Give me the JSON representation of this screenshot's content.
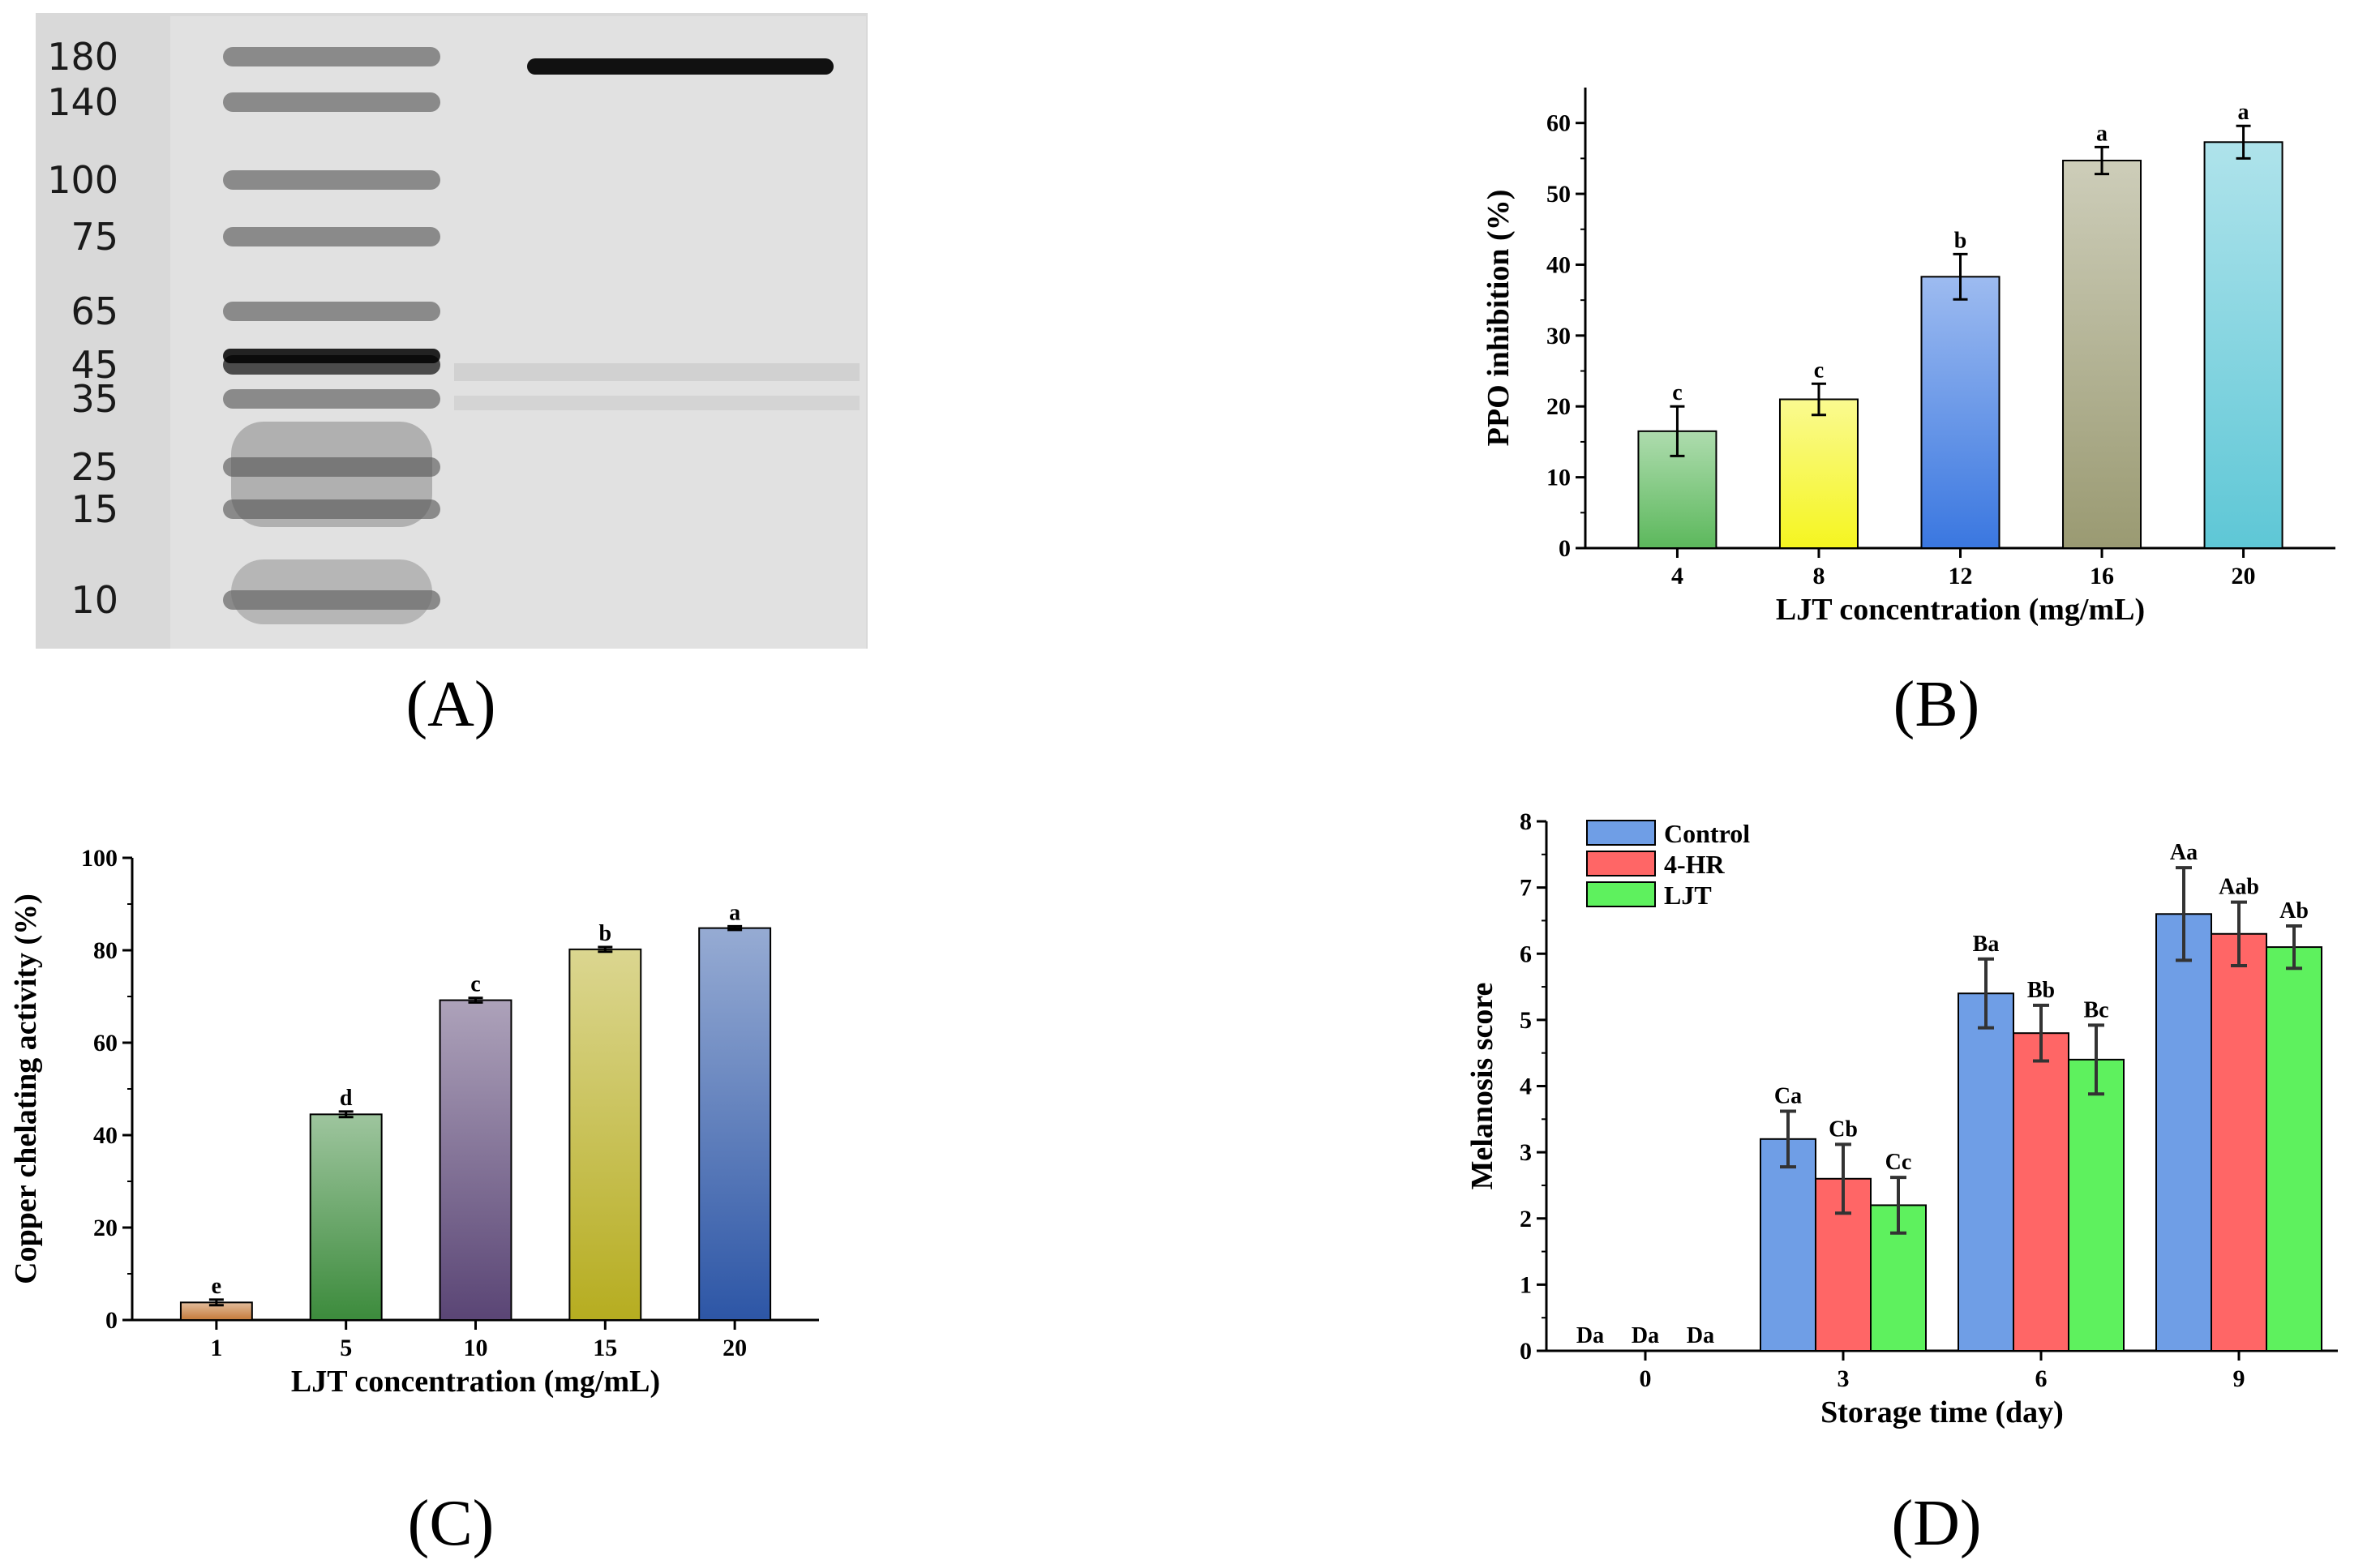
{
  "gel": {
    "markers": [
      "180",
      "140",
      "100",
      "75",
      "65",
      "45",
      "35",
      "25",
      "15",
      "10"
    ],
    "label": "(A)",
    "marker_values": [
      180,
      140,
      100,
      75,
      65,
      45,
      35,
      25,
      15,
      10
    ]
  },
  "panels": {
    "B": "(B)",
    "C": "(C)",
    "D": "(D)"
  },
  "colors": {
    "B": [
      "#5cb85c",
      "#f5f520",
      "#3a77e0",
      "#9a9a72",
      "#5ec7d6"
    ],
    "C": [
      "#c57a3a",
      "#3c8b3c",
      "#5a4575",
      "#b6ad20",
      "#2d56a6"
    ],
    "D": [
      "#6f9ee6",
      "#ff6666",
      "#5ef15e"
    ]
  },
  "chart_data": [
    {
      "panel": "B",
      "type": "bar",
      "categories": [
        "4",
        "8",
        "12",
        "16",
        "20"
      ],
      "values": [
        16.5,
        21.0,
        38.3,
        54.7,
        57.3
      ],
      "errors": [
        3.5,
        2.2,
        3.2,
        1.9,
        2.3
      ],
      "sig": [
        "c",
        "c",
        "b",
        "a",
        "a"
      ],
      "xlabel": "LJT concentration (mg/mL)",
      "ylabel": "PPO inhibition (%)",
      "ylim": [
        0,
        65
      ],
      "yticks": [
        "0",
        "10",
        "20",
        "30",
        "40",
        "50",
        "60"
      ],
      "title": ""
    },
    {
      "panel": "C",
      "type": "bar",
      "categories": [
        "1",
        "5",
        "10",
        "15",
        "20"
      ],
      "values": [
        3.8,
        44.5,
        69.2,
        80.2,
        84.8
      ],
      "errors": [
        0.6,
        0.6,
        0.5,
        0.5,
        0.4
      ],
      "sig": [
        "e",
        "d",
        "c",
        "b",
        "a"
      ],
      "xlabel": "LJT concentration (mg/mL)",
      "ylabel": "Copper chelating activity (%)",
      "ylim": [
        0,
        100
      ],
      "yticks": [
        "0",
        "20",
        "40",
        "60",
        "80",
        "100"
      ],
      "title": ""
    },
    {
      "panel": "D",
      "type": "bar",
      "categories": [
        "0",
        "3",
        "6",
        "9"
      ],
      "series": [
        {
          "name": "Control",
          "values": [
            0,
            3.2,
            5.4,
            6.6
          ],
          "errors": [
            0,
            0.42,
            0.52,
            0.7
          ],
          "sig": [
            "Da",
            "Ca",
            "Ba",
            "Aa"
          ]
        },
        {
          "name": "4-HR",
          "values": [
            0,
            2.6,
            4.8,
            6.3
          ],
          "errors": [
            0,
            0.52,
            0.42,
            0.48
          ],
          "sig": [
            "Da",
            "Cb",
            "Bb",
            "Aab"
          ]
        },
        {
          "name": "LJT",
          "values": [
            0,
            2.2,
            4.4,
            6.1
          ],
          "errors": [
            0,
            0.42,
            0.52,
            0.32
          ],
          "sig": [
            "Da",
            "Cc",
            "Bc",
            "Ab"
          ]
        }
      ],
      "xlabel": "Storage time (day)",
      "ylabel": "Melanosis score",
      "ylim": [
        0,
        8
      ],
      "yticks": [
        "0",
        "1",
        "2",
        "3",
        "4",
        "5",
        "6",
        "7",
        "8"
      ],
      "legend": "top-left",
      "title": ""
    }
  ]
}
